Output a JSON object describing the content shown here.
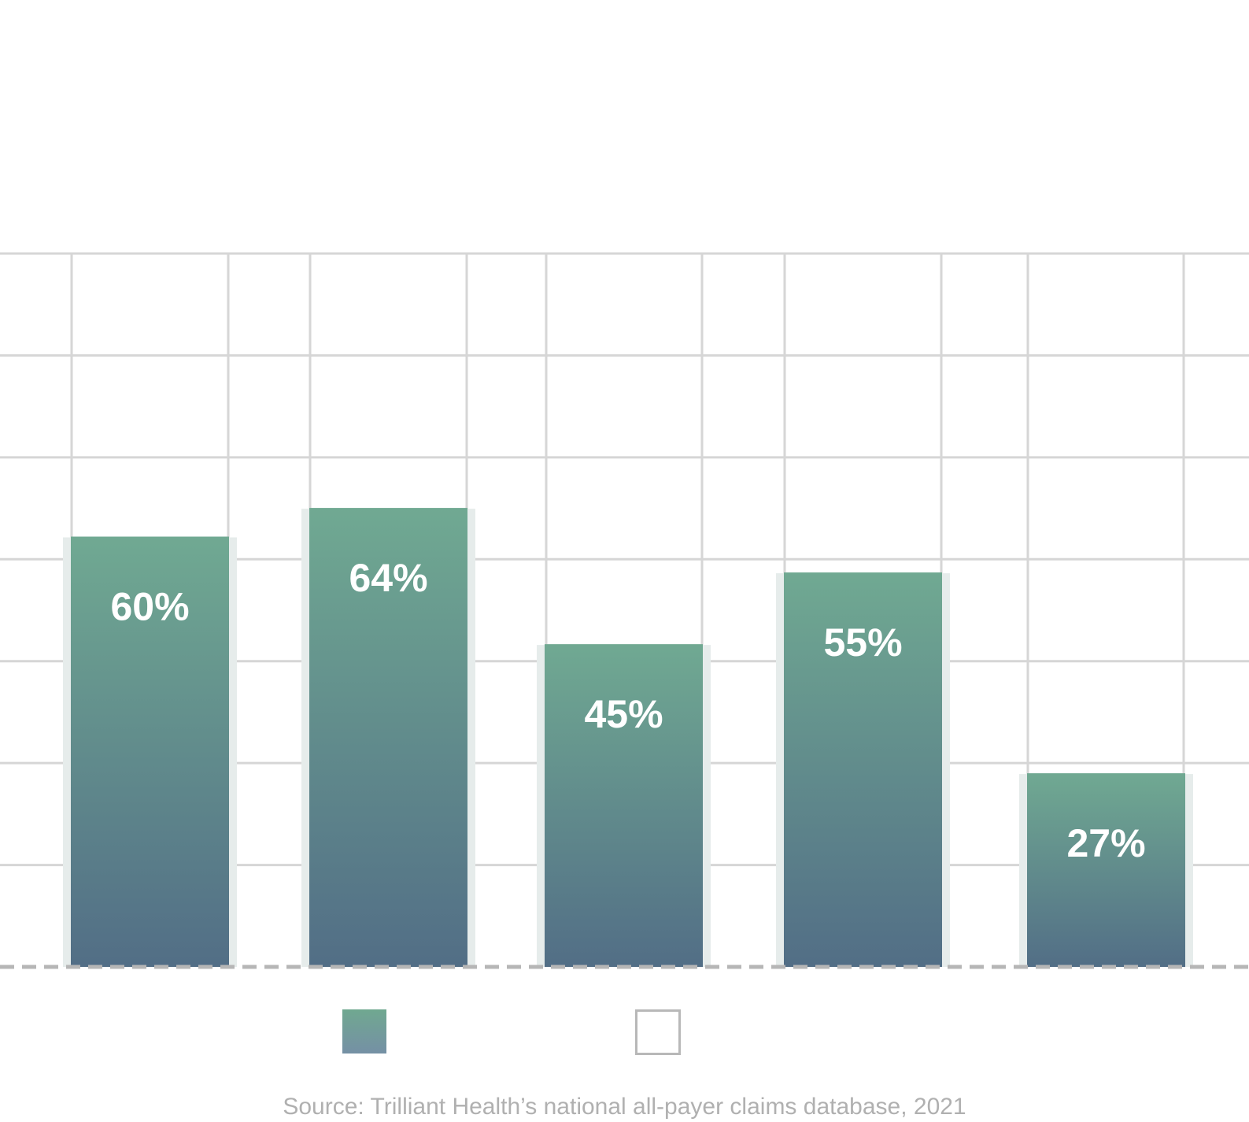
{
  "chart_data": {
    "type": "bar",
    "categories": [
      "",
      "",
      "",
      "",
      ""
    ],
    "values": [
      60,
      64,
      45,
      55,
      27
    ],
    "data_labels": [
      "60%",
      "64%",
      "45%",
      "55%",
      "27%"
    ],
    "title": "",
    "xlabel": "",
    "ylabel": "",
    "ylim": [
      0,
      100
    ],
    "grid": true,
    "legend": {
      "placement": "bottom",
      "entries": [
        {
          "swatch": "filled-gradient",
          "label": ""
        },
        {
          "swatch": "outline",
          "label": ""
        }
      ]
    },
    "colors": {
      "bar_top": "#70a992",
      "bar_bottom": "#526e86",
      "bar_shadow": "#e6eceb",
      "grid": "#d6d6d6",
      "baseline": "#b6b6b6",
      "label": "#ffffff"
    }
  },
  "source_text": "Source: Trilliant Health’s national all-payer claims database, 2021"
}
